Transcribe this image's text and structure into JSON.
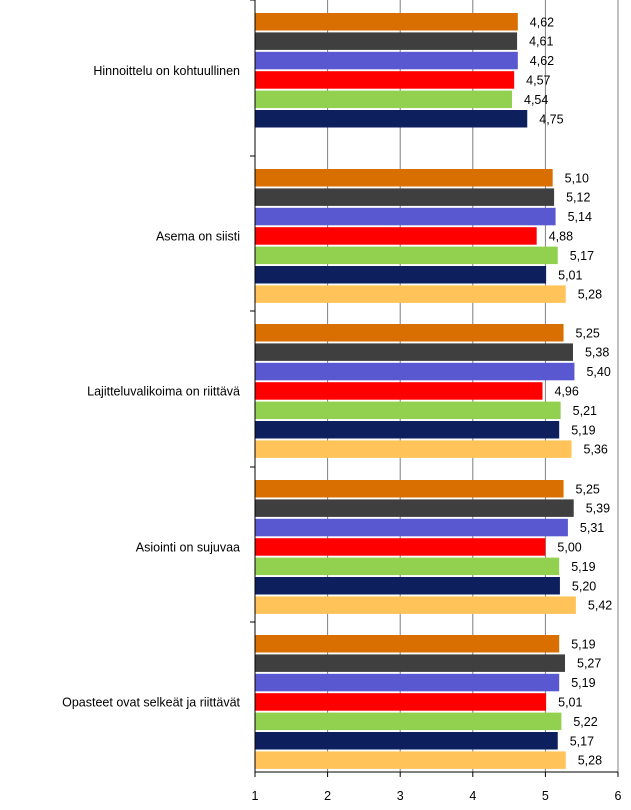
{
  "chart_data": {
    "type": "bar",
    "orientation": "horizontal",
    "categories": [
      "Hinnoittelu on kohtuullinen",
      "Asema on siisti",
      "Lajitteluvalikoima  on riittävä",
      "Asiointi  on sujuvaa",
      "Opasteet ovat selkeät ja riittävät"
    ],
    "series": [
      {
        "color": "#D96F00",
        "values": [
          4.62,
          5.1,
          5.25,
          5.25,
          5.19
        ],
        "labels": [
          "4,62",
          "5,10",
          "5,25",
          "5,25",
          "5,19"
        ]
      },
      {
        "color": "#3F3F3F",
        "values": [
          4.61,
          5.12,
          5.38,
          5.39,
          5.27
        ],
        "labels": [
          "4,61",
          "5,12",
          "5,38",
          "5,39",
          "5,27"
        ]
      },
      {
        "color": "#5A58D0",
        "values": [
          4.62,
          5.14,
          5.4,
          5.31,
          5.19
        ],
        "labels": [
          "4,62",
          "5,14",
          "5,40",
          "5,31",
          "5,19"
        ]
      },
      {
        "color": "#FF0000",
        "values": [
          4.57,
          4.88,
          4.96,
          5.0,
          5.01
        ],
        "labels": [
          "4,57",
          "4,88",
          "4,96",
          "5,00",
          "5,01"
        ]
      },
      {
        "color": "#92D050",
        "values": [
          4.54,
          5.17,
          5.21,
          5.19,
          5.22
        ],
        "labels": [
          "4,54",
          "5,17",
          "5,21",
          "5,19",
          "5,22"
        ]
      },
      {
        "color": "#0E1F5E",
        "values": [
          4.75,
          5.01,
          5.19,
          5.2,
          5.17
        ],
        "labels": [
          "4,75",
          "5,01",
          "5,19",
          "5,20",
          "5,17"
        ]
      },
      {
        "color": "#FFC35A",
        "values": [
          null,
          5.28,
          5.36,
          5.42,
          5.28
        ],
        "labels": [
          null,
          "5,28",
          "5,36",
          "5,42",
          "5,28"
        ]
      }
    ],
    "xlim": [
      1,
      6
    ],
    "xticks": [
      "1",
      "2",
      "3",
      "4",
      "5",
      "6"
    ],
    "grid": true,
    "gridline_color": "#7F7F7F",
    "title": "",
    "xlabel": "",
    "ylabel": ""
  }
}
